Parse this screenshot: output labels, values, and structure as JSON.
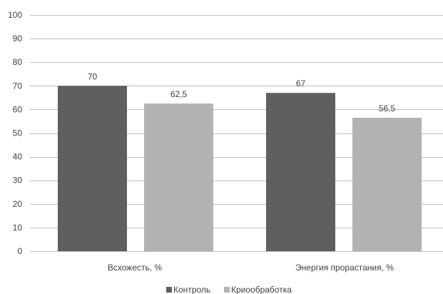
{
  "chart_data": {
    "type": "bar",
    "categories": [
      "Всхожесть, %",
      "Энергия прорастания, %"
    ],
    "series": [
      {
        "name": "Контроль",
        "values": [
          70,
          67
        ],
        "labels": [
          "70",
          "67"
        ],
        "color": "#5f5f5f"
      },
      {
        "name": "Криообработка",
        "values": [
          62.5,
          56.5
        ],
        "labels": [
          "62,5",
          "56,5"
        ],
        "color": "#b2b2b2"
      }
    ],
    "ylim": [
      0,
      100
    ],
    "yticks": [
      "0",
      "10",
      "20",
      "30",
      "40",
      "50",
      "60",
      "70",
      "80",
      "90",
      "100"
    ],
    "grid": true,
    "legend_position": "bottom"
  }
}
